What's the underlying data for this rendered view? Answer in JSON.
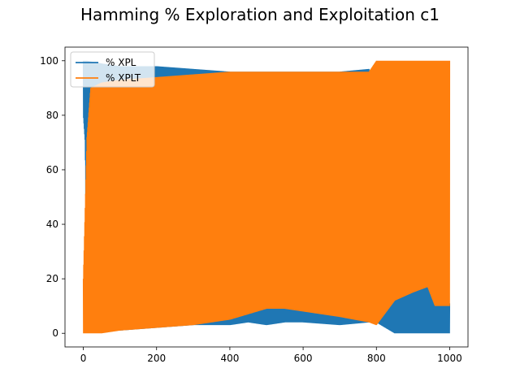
{
  "chart_data": {
    "type": "line",
    "title": "Hamming % Exploration and Exploitation c1",
    "xlabel": "",
    "ylabel": "",
    "xlim": [
      -50,
      1050
    ],
    "ylim": [
      -5,
      105
    ],
    "xticks": [
      0,
      200,
      400,
      600,
      800,
      1000
    ],
    "yticks": [
      0,
      20,
      40,
      60,
      80,
      100
    ],
    "grid": false,
    "legend_position": "upper-left",
    "series": [
      {
        "name": "% XPL",
        "color": "#1f77b4",
        "style": "dense-oscillating",
        "lower_envelope": [
          [
            0,
            80
          ],
          [
            5,
            70
          ],
          [
            10,
            5
          ],
          [
            20,
            2
          ],
          [
            50,
            1
          ],
          [
            100,
            1
          ],
          [
            200,
            2
          ],
          [
            300,
            3
          ],
          [
            400,
            3
          ],
          [
            450,
            4
          ],
          [
            500,
            3
          ],
          [
            550,
            4
          ],
          [
            600,
            4
          ],
          [
            700,
            3
          ],
          [
            780,
            4
          ],
          [
            800,
            4
          ],
          [
            850,
            0
          ],
          [
            900,
            0
          ],
          [
            950,
            0
          ],
          [
            1000,
            0
          ]
        ],
        "upper_envelope": [
          [
            0,
            100
          ],
          [
            10,
            100
          ],
          [
            50,
            99
          ],
          [
            100,
            98
          ],
          [
            200,
            98
          ],
          [
            300,
            97
          ],
          [
            400,
            96
          ],
          [
            500,
            96
          ],
          [
            600,
            96
          ],
          [
            700,
            96
          ],
          [
            780,
            97
          ],
          [
            800,
            14
          ],
          [
            850,
            17
          ],
          [
            900,
            19
          ],
          [
            940,
            20
          ],
          [
            960,
            11
          ],
          [
            1000,
            11
          ]
        ]
      },
      {
        "name": "% XPLT",
        "color": "#ff7f0e",
        "style": "dense-oscillating",
        "lower_envelope": [
          [
            0,
            0
          ],
          [
            10,
            0
          ],
          [
            50,
            0
          ],
          [
            100,
            1
          ],
          [
            200,
            2
          ],
          [
            300,
            3
          ],
          [
            400,
            5
          ],
          [
            450,
            7
          ],
          [
            500,
            9
          ],
          [
            550,
            9
          ],
          [
            600,
            8
          ],
          [
            700,
            6
          ],
          [
            780,
            4
          ],
          [
            800,
            3
          ],
          [
            850,
            12
          ],
          [
            900,
            15
          ],
          [
            940,
            17
          ],
          [
            960,
            10
          ],
          [
            1000,
            10
          ]
        ],
        "upper_envelope": [
          [
            0,
            20
          ],
          [
            10,
            72
          ],
          [
            20,
            90
          ],
          [
            50,
            92
          ],
          [
            100,
            93
          ],
          [
            200,
            94
          ],
          [
            300,
            95
          ],
          [
            400,
            96
          ],
          [
            500,
            96
          ],
          [
            600,
            96
          ],
          [
            700,
            96
          ],
          [
            780,
            96
          ],
          [
            800,
            100
          ],
          [
            900,
            100
          ],
          [
            1000,
            100
          ]
        ]
      }
    ]
  }
}
